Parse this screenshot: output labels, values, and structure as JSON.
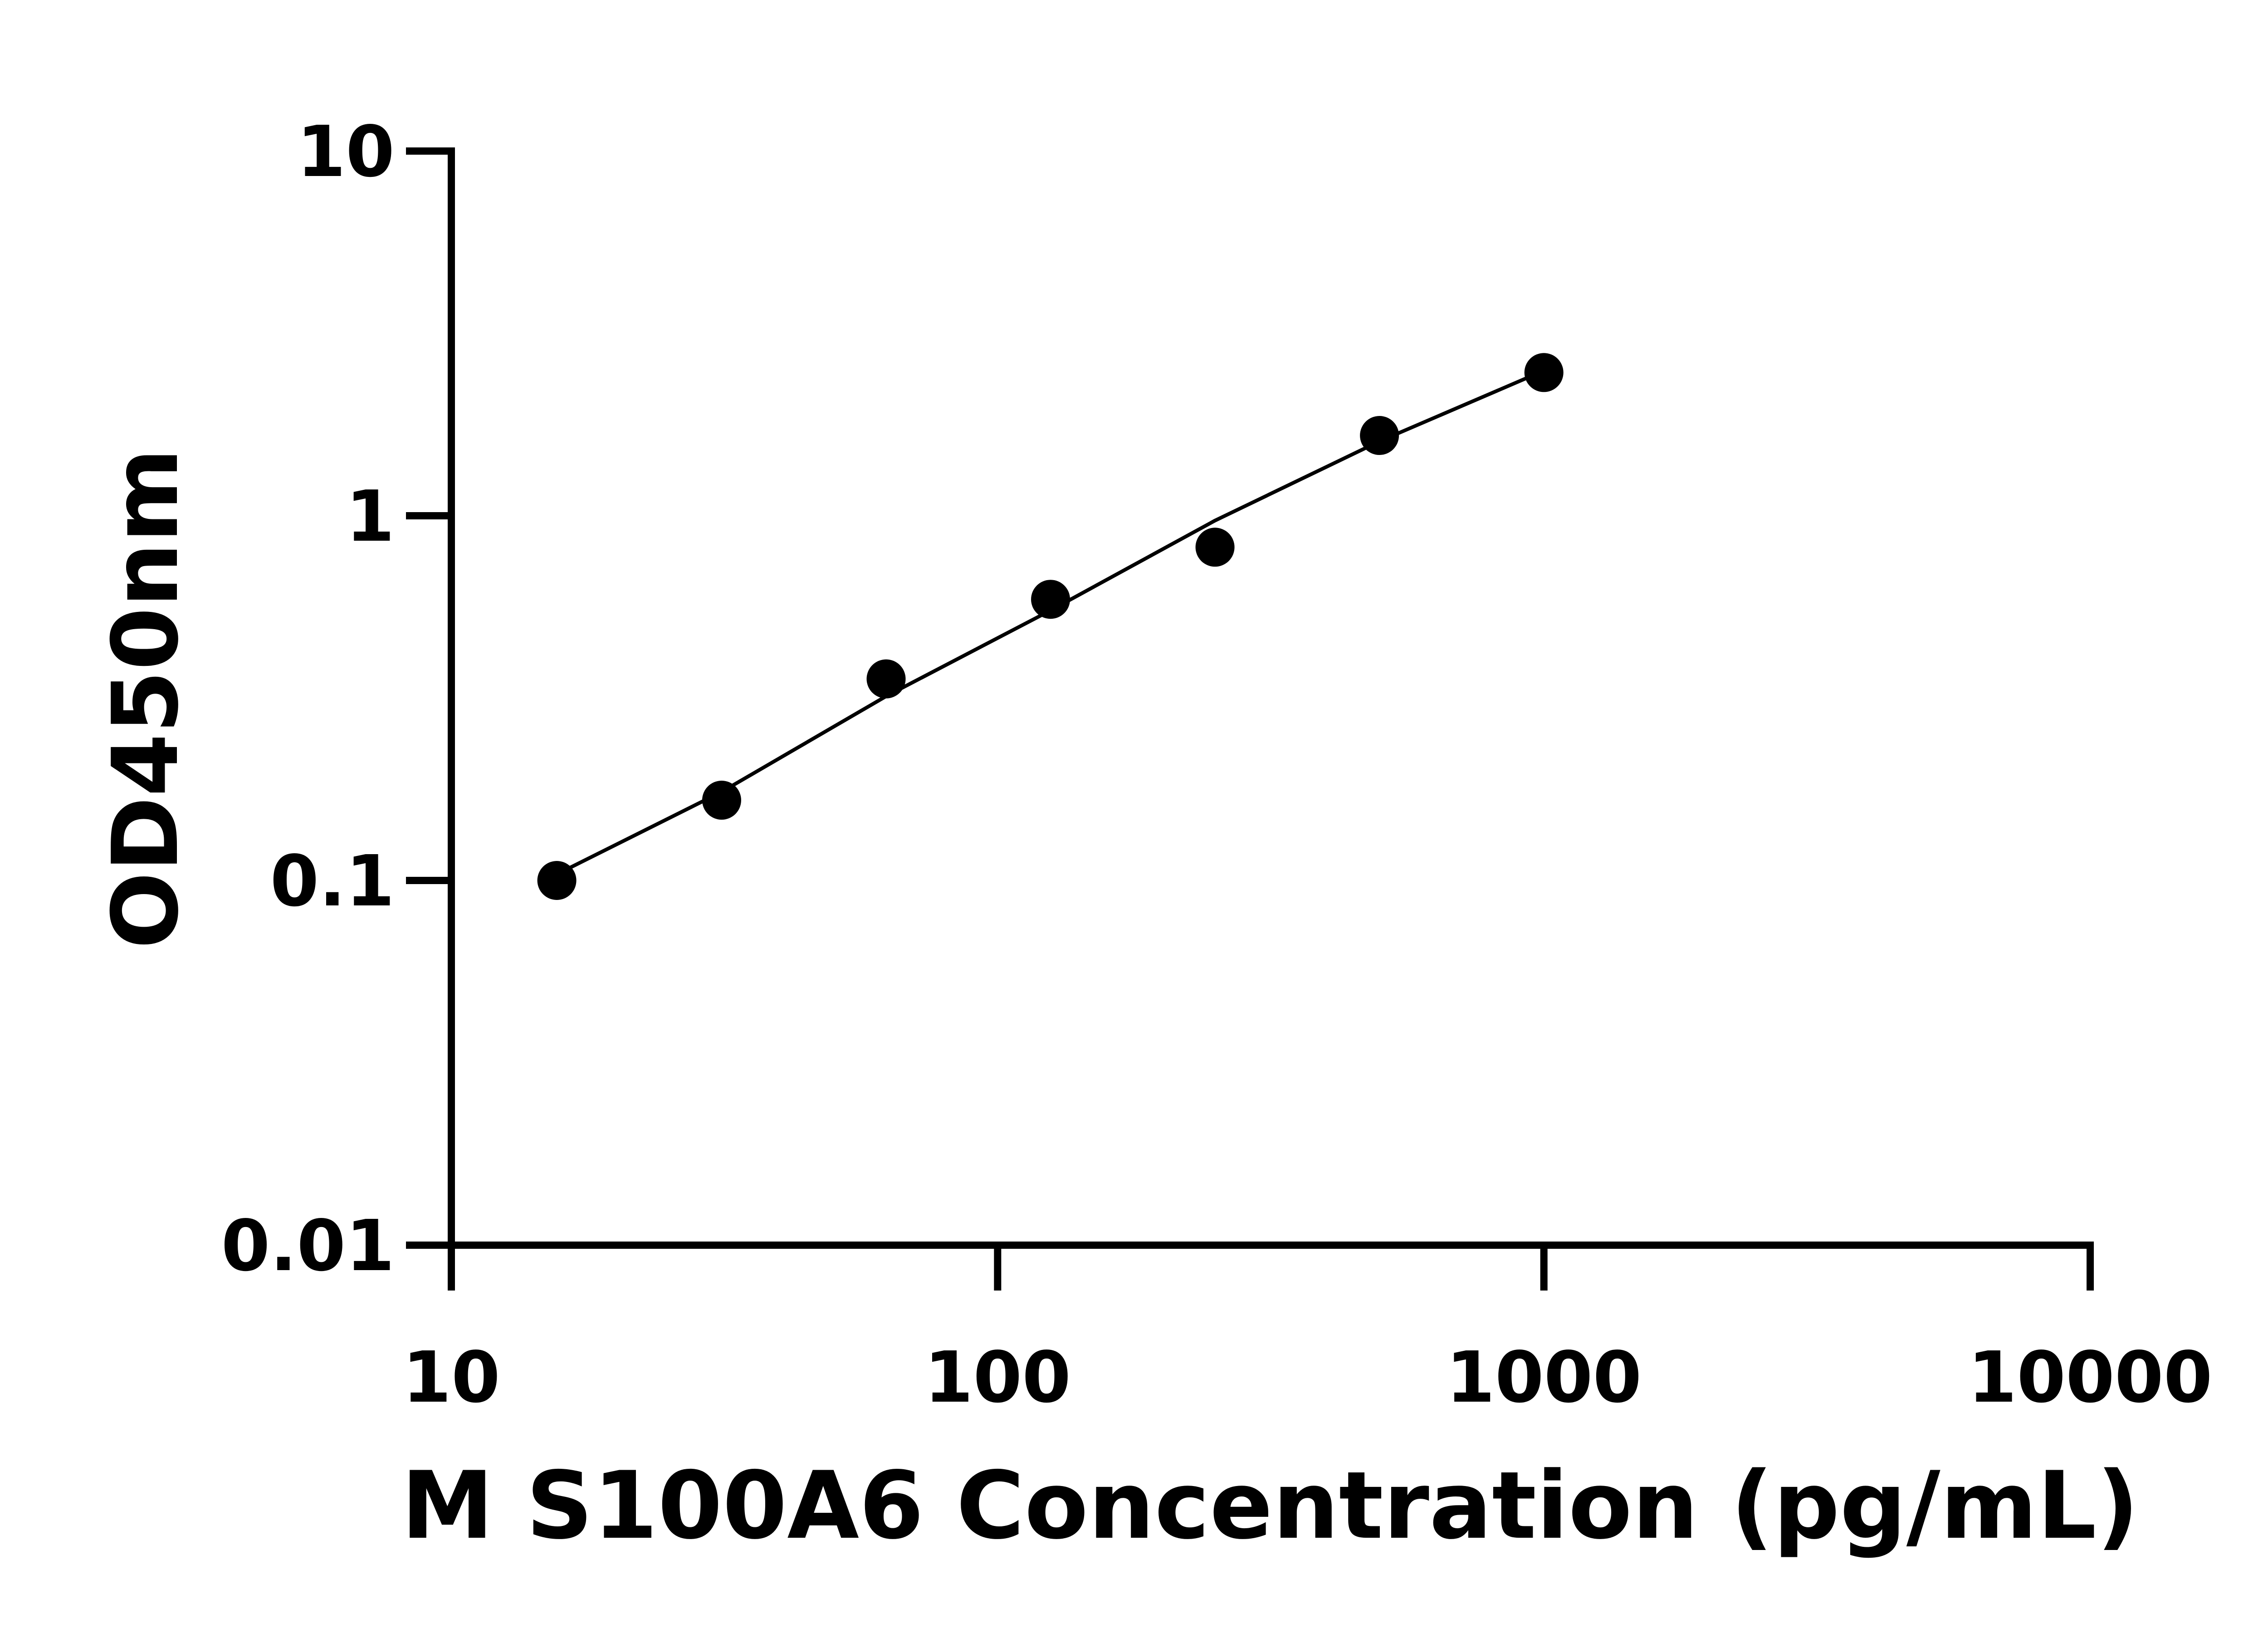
{
  "chart_data": {
    "type": "scatter",
    "xlabel": "M S100A6 Concentration (pg/mL)",
    "ylabel": "OD450nm",
    "xscale": "log",
    "yscale": "log",
    "xlim": [
      10,
      10000
    ],
    "ylim": [
      0.01,
      10
    ],
    "xticks": [
      10,
      100,
      1000,
      10000
    ],
    "yticks": [
      0.01,
      0.1,
      1,
      10
    ],
    "series": [
      {
        "type": "scatter",
        "color": "#000000",
        "x": [
          15.6,
          31.25,
          62.5,
          125,
          250,
          500,
          1000
        ],
        "values": [
          0.1,
          0.166,
          0.357,
          0.59,
          0.82,
          1.66,
          2.47
        ]
      },
      {
        "type": "line",
        "color": "#000000",
        "x": [
          15.6,
          31.25,
          62.5,
          125,
          250,
          500,
          1000
        ],
        "values": [
          0.104,
          0.175,
          0.32,
          0.55,
          0.97,
          1.6,
          2.5
        ]
      }
    ]
  }
}
